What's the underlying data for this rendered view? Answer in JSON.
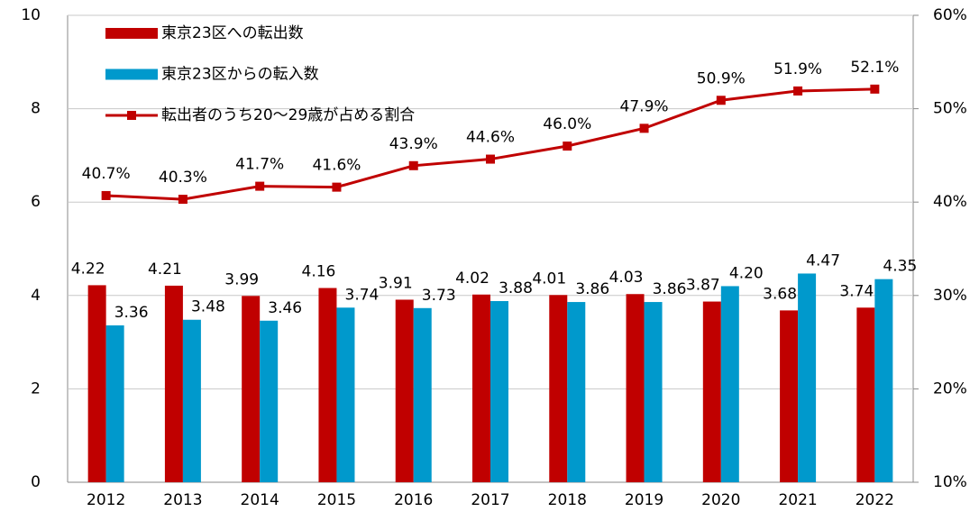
{
  "chart_data": {
    "type": "bar-line",
    "categories": [
      "2012",
      "2013",
      "2014",
      "2015",
      "2016",
      "2017",
      "2018",
      "2019",
      "2020",
      "2021",
      "2022"
    ],
    "series": [
      {
        "name": "東京23区への転出数",
        "color": "#c00000",
        "type": "bar",
        "values": [
          4.22,
          4.21,
          3.99,
          4.16,
          3.91,
          4.02,
          4.01,
          4.03,
          3.87,
          3.68,
          3.74
        ]
      },
      {
        "name": "東京23区からの転入数",
        "color": "#0099cc",
        "type": "bar",
        "values": [
          3.36,
          3.48,
          3.46,
          3.74,
          3.73,
          3.88,
          3.86,
          3.86,
          4.2,
          4.47,
          4.35
        ],
        "value_labels": [
          "3.36",
          "3.48",
          "3.46",
          "3.74",
          "3.73",
          "3.88",
          "3.86",
          "3.86",
          "4.20",
          "4.47",
          "4.35"
        ]
      },
      {
        "name": "転出者のうち20〜29歳が占める割合",
        "color": "#c00000",
        "type": "line",
        "axis": "y2",
        "values": [
          40.7,
          40.3,
          41.7,
          41.6,
          43.9,
          44.6,
          46.0,
          47.9,
          50.9,
          51.9,
          52.1
        ],
        "value_labels": [
          "40.7%",
          "40.3%",
          "41.7%",
          "41.6%",
          "43.9%",
          "44.6%",
          "46.0%",
          "47.9%",
          "50.9%",
          "51.9%",
          "52.1%"
        ]
      }
    ],
    "ylim": [
      0,
      10
    ],
    "yticks": [
      0,
      2,
      4,
      6,
      8,
      10
    ],
    "y2lim": [
      10,
      60
    ],
    "y2ticks": [
      {
        "value": 10,
        "label": "10%"
      },
      {
        "value": 20,
        "label": "20%"
      },
      {
        "value": 30,
        "label": "30%"
      },
      {
        "value": 40,
        "label": "40%"
      },
      {
        "value": 50,
        "label": "50%"
      },
      {
        "value": 60,
        "label": "60%"
      }
    ],
    "grid": true,
    "legend": "top-left"
  }
}
